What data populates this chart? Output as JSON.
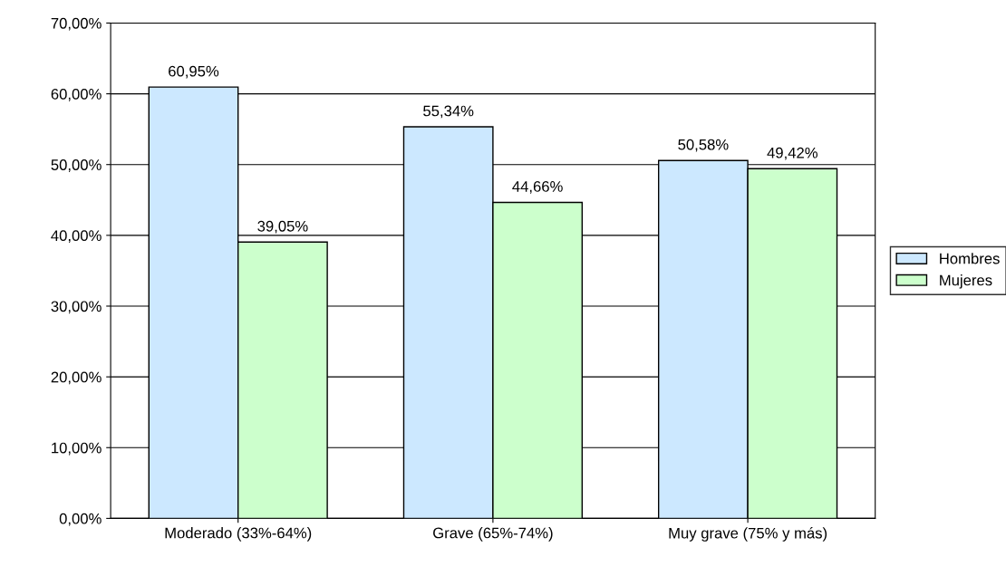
{
  "chart_data": {
    "type": "bar",
    "categories": [
      "Moderado (33%-64%)",
      "Grave (65%-74%)",
      "Muy grave (75% y más)"
    ],
    "series": [
      {
        "name": "Hombres",
        "color": "#cce8ff",
        "values": [
          60.95,
          55.34,
          50.58
        ],
        "value_labels": [
          "60,95%",
          "55,34%",
          "50,58%"
        ]
      },
      {
        "name": "Mujeres",
        "color": "#ccffcc",
        "values": [
          39.05,
          44.66,
          49.42
        ],
        "value_labels": [
          "39,05%",
          "44,66%",
          "49,42%"
        ]
      }
    ],
    "ylim": [
      0,
      70
    ],
    "yticks": [
      {
        "value": 0,
        "label": "0,00%"
      },
      {
        "value": 10,
        "label": "10,00%"
      },
      {
        "value": 20,
        "label": "20,00%"
      },
      {
        "value": 30,
        "label": "30,00%"
      },
      {
        "value": 40,
        "label": "40,00%"
      },
      {
        "value": 50,
        "label": "50,00%"
      },
      {
        "value": 60,
        "label": "60,00%"
      },
      {
        "value": 70,
        "label": "70,00%"
      }
    ],
    "grid": "y",
    "legend": "right"
  }
}
